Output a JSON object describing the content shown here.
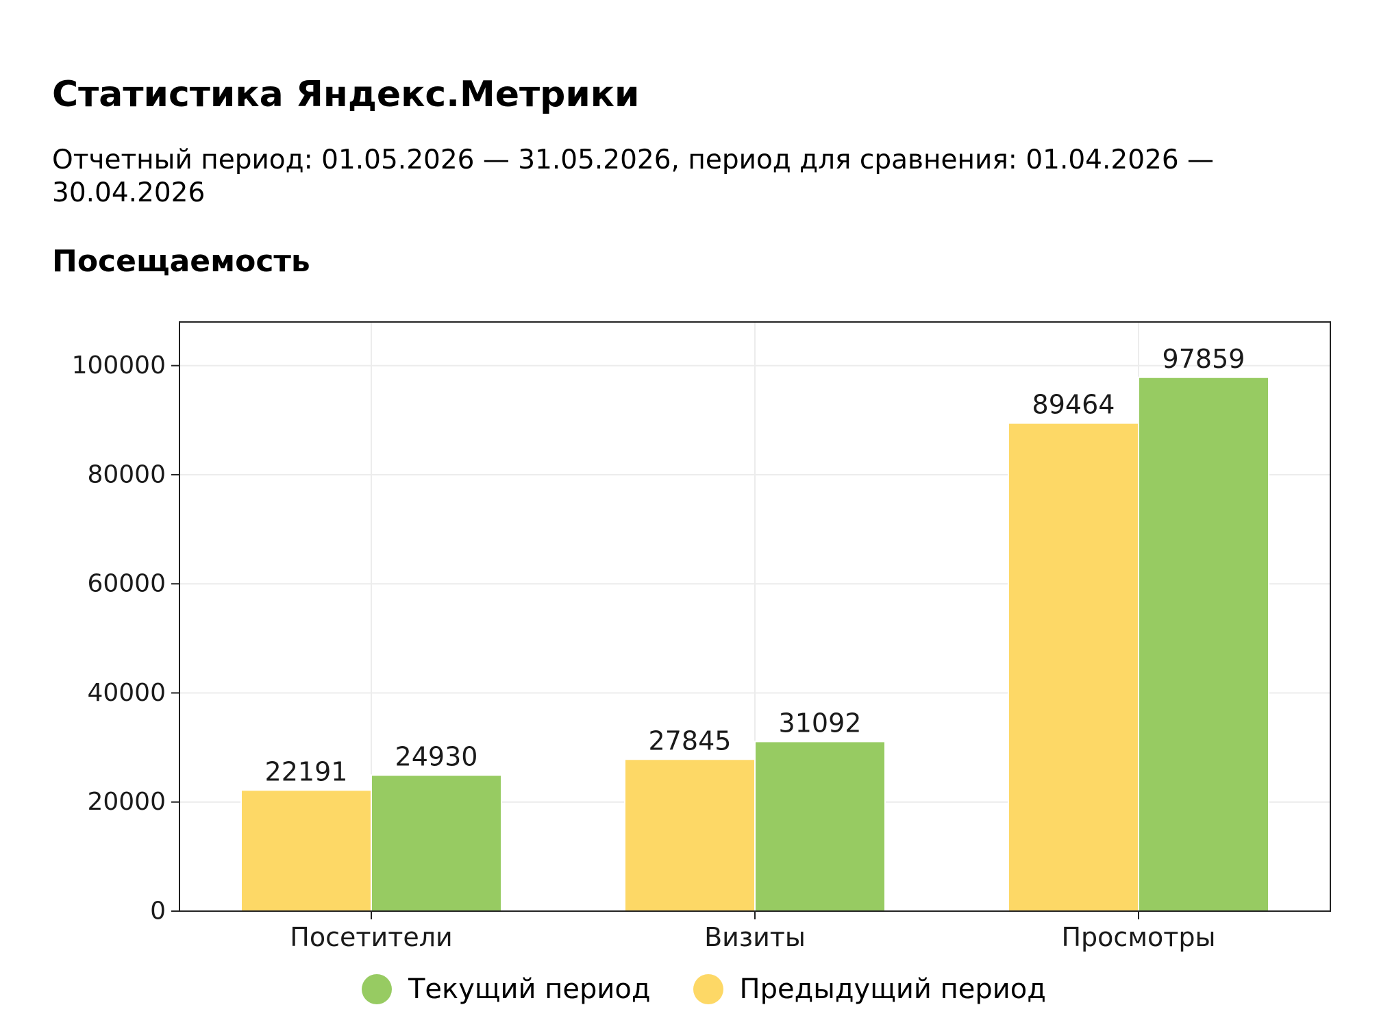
{
  "header": {
    "title": "Статистика Яндекс.Метрики",
    "period_text": "Отчетный период: 01.05.2026 — 31.05.2026, период для сравнения: 01.04.2026 — 30.04.2026"
  },
  "section": {
    "title": "Посещаемость"
  },
  "colors": {
    "current": "#97cb62",
    "previous": "#fdd866",
    "grid": "#ececec",
    "frame": "#222222"
  },
  "legend": {
    "items": [
      {
        "label": "Текущий период",
        "series": "current"
      },
      {
        "label": "Предыдущий период",
        "series": "previous"
      }
    ]
  },
  "chart_data": {
    "type": "bar",
    "categories": [
      "Посетители",
      "Визиты",
      "Просмотры"
    ],
    "series": [
      {
        "name": "Предыдущий период",
        "key": "previous",
        "values": [
          22191,
          27845,
          89464
        ]
      },
      {
        "name": "Текущий период",
        "key": "current",
        "values": [
          24930,
          31092,
          97859
        ]
      }
    ],
    "yticks": [
      0,
      20000,
      40000,
      60000,
      80000,
      100000
    ],
    "ylim": [
      0,
      108000
    ],
    "grid": true,
    "legend_position": "bottom-center",
    "xlabel": "",
    "ylabel": ""
  }
}
